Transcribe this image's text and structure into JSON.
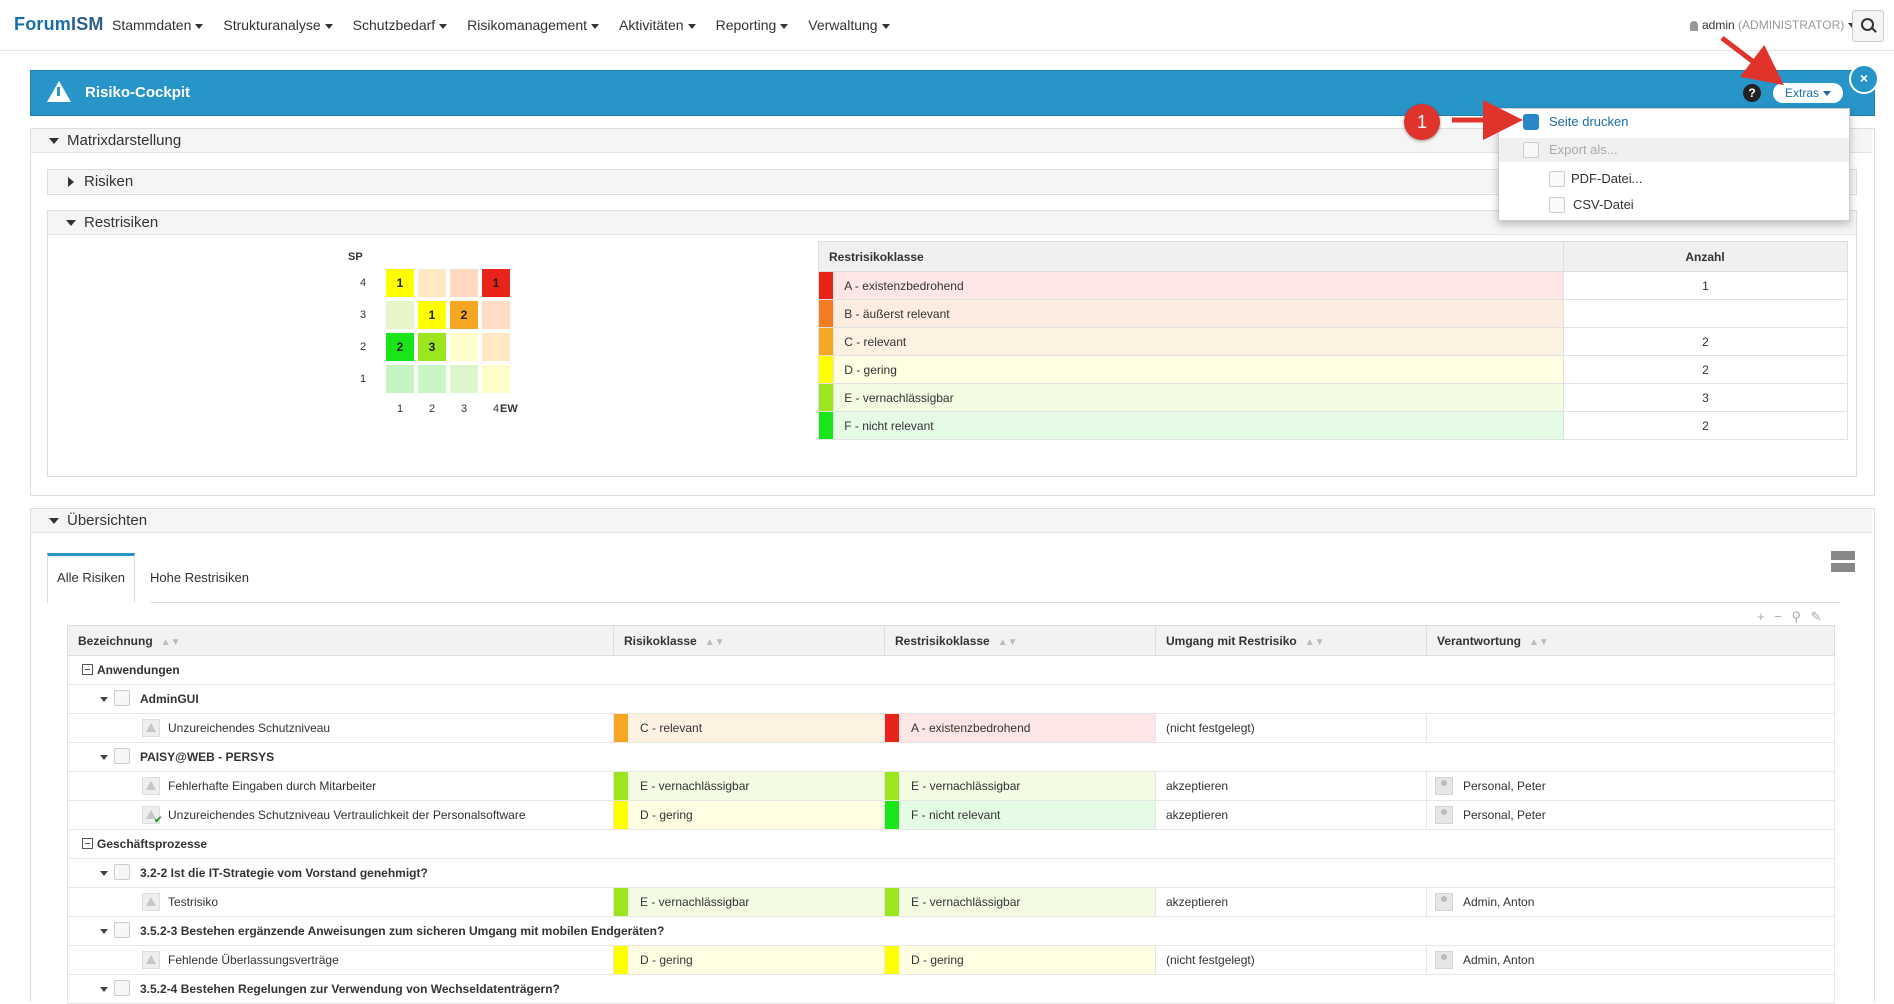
{
  "nav": {
    "brand_a": "Forum",
    "brand_b": "ISM",
    "menu": [
      "Stammdaten",
      "Strukturanalyse",
      "Schutzbedarf",
      "Risikomanagement",
      "Aktivitäten",
      "Reporting",
      "Verwaltung"
    ],
    "user": "admin",
    "role": "(ADMINISTRATOR)"
  },
  "panel": {
    "title": "Risiko-Cockpit",
    "help": "?",
    "extras": "Extras",
    "close": "×"
  },
  "dropdown": {
    "print": "Seite drucken",
    "export": "Export als...",
    "pdf": "PDF-Datei...",
    "csv": "CSV-Datei"
  },
  "annotation": "1",
  "sections": {
    "matrix": "Matrixdarstellung",
    "risks": "Risiken",
    "residual": "Restrisiken",
    "overviews": "Übersichten"
  },
  "matrix": {
    "y_label": "SP",
    "x_label": "EW",
    "rows": [
      4,
      3,
      2,
      1
    ],
    "cols": [
      1,
      2,
      3,
      4
    ],
    "cells": [
      {
        "sp": 4,
        "ew": 1,
        "count": "1",
        "color": "#ffff00"
      },
      {
        "sp": 4,
        "ew": 2,
        "count": "",
        "color": "#ffe8c4"
      },
      {
        "sp": 4,
        "ew": 3,
        "count": "",
        "color": "#ffd9c0"
      },
      {
        "sp": 4,
        "ew": 4,
        "count": "1",
        "color": "#e8231a"
      },
      {
        "sp": 3,
        "ew": 1,
        "count": "",
        "color": "#e3f7c8"
      },
      {
        "sp": 3,
        "ew": 2,
        "count": "1",
        "color": "#ffff00"
      },
      {
        "sp": 3,
        "ew": 3,
        "count": "2",
        "color": "#f5a623"
      },
      {
        "sp": 3,
        "ew": 4,
        "count": "",
        "color": "#ffddc4"
      },
      {
        "sp": 2,
        "ew": 1,
        "count": "2",
        "color": "#19e619"
      },
      {
        "sp": 2,
        "ew": 2,
        "count": "3",
        "color": "#9be61e"
      },
      {
        "sp": 2,
        "ew": 3,
        "count": "",
        "color": "#fffccc"
      },
      {
        "sp": 2,
        "ew": 4,
        "count": "",
        "color": "#ffe8c4"
      },
      {
        "sp": 1,
        "ew": 1,
        "count": "",
        "color": "#c4f5c0"
      },
      {
        "sp": 1,
        "ew": 2,
        "count": "",
        "color": "#c8f5c4"
      },
      {
        "sp": 1,
        "ew": 3,
        "count": "",
        "color": "#dcf7cc"
      },
      {
        "sp": 1,
        "ew": 4,
        "count": "",
        "color": "#fffcc8"
      }
    ]
  },
  "residual_table": {
    "col_class": "Restrisikoklasse",
    "col_count": "Anzahl",
    "rows": [
      {
        "label": "A - existenzbedrohend",
        "count": "1",
        "color": "#e8231a",
        "bg": "#fde6e5"
      },
      {
        "label": "B - äußerst relevant",
        "count": "",
        "color": "#f47c20",
        "bg": "#fdece2"
      },
      {
        "label": "C - relevant",
        "count": "2",
        "color": "#f5a623",
        "bg": "#fdf1e2"
      },
      {
        "label": "D - gering",
        "count": "2",
        "color": "#ffff00",
        "bg": "#fffde2"
      },
      {
        "label": "E - vernachlässigbar",
        "count": "3",
        "color": "#9be61e",
        "bg": "#f3fbe2"
      },
      {
        "label": "F - nicht relevant",
        "count": "2",
        "color": "#19e619",
        "bg": "#e6fbe6"
      }
    ]
  },
  "tabs": [
    "Alle Risiken",
    "Hohe Restrisiken"
  ],
  "grid": {
    "headers": [
      "Bezeichnung",
      "Risikoklasse",
      "Restrisikoklasse",
      "Umgang mit Restrisiko",
      "Verantwortung"
    ],
    "rows": [
      {
        "kind": "group",
        "label": "Anwendungen"
      },
      {
        "kind": "sub",
        "label": "AdminGUI"
      },
      {
        "kind": "leaf",
        "label": "Unzureichendes Schutzniveau",
        "rk": "C - relevant",
        "rk_c": "#f5a623",
        "rk_bg": "#fdf1e2",
        "rr": "A - existenzbedrohend",
        "rr_c": "#e8231a",
        "rr_bg": "#fde6e5",
        "umgang": "(nicht festgelegt)",
        "verantw": ""
      },
      {
        "kind": "sub",
        "label": "PAISY@WEB - PERSYS"
      },
      {
        "kind": "leaf",
        "label": "Fehlerhafte Eingaben durch Mitarbeiter",
        "rk": "E - vernachlässigbar",
        "rk_c": "#9be61e",
        "rk_bg": "#f3fbe2",
        "rr": "E - vernachlässigbar",
        "rr_c": "#9be61e",
        "rr_bg": "#f3fbe2",
        "umgang": "akzeptieren",
        "verantw": "Personal, Peter"
      },
      {
        "kind": "leaf",
        "label": "Unzureichendes Schutzniveau Vertraulichkeit der Personalsoftware",
        "check": true,
        "rk": "D - gering",
        "rk_c": "#ffff00",
        "rk_bg": "#fffde2",
        "rr": "F - nicht relevant",
        "rr_c": "#19e619",
        "rr_bg": "#e6fbe6",
        "umgang": "akzeptieren",
        "verantw": "Personal, Peter"
      },
      {
        "kind": "group",
        "label": "Geschäftsprozesse"
      },
      {
        "kind": "sub",
        "label": "3.2-2 Ist die IT-Strategie vom Vorstand genehmigt?"
      },
      {
        "kind": "leaf",
        "label": "Testrisiko",
        "rk": "E - vernachlässigbar",
        "rk_c": "#9be61e",
        "rk_bg": "#f3fbe2",
        "rr": "E - vernachlässigbar",
        "rr_c": "#9be61e",
        "rr_bg": "#f3fbe2",
        "umgang": "akzeptieren",
        "verantw": "Admin, Anton"
      },
      {
        "kind": "sub",
        "label": "3.5.2-3 Bestehen ergänzende Anweisungen zum sicheren Umgang mit mobilen Endgeräten?"
      },
      {
        "kind": "leaf",
        "label": "Fehlende Überlassungsverträge",
        "rk": "D - gering",
        "rk_c": "#ffff00",
        "rk_bg": "#fffde2",
        "rr": "D - gering",
        "rr_c": "#ffff00",
        "rr_bg": "#fffde2",
        "umgang": "(nicht festgelegt)",
        "verantw": "Admin, Anton"
      },
      {
        "kind": "sub",
        "label": "3.5.2-4 Bestehen Regelungen zur Verwendung von Wechseldatenträgern?"
      }
    ]
  }
}
